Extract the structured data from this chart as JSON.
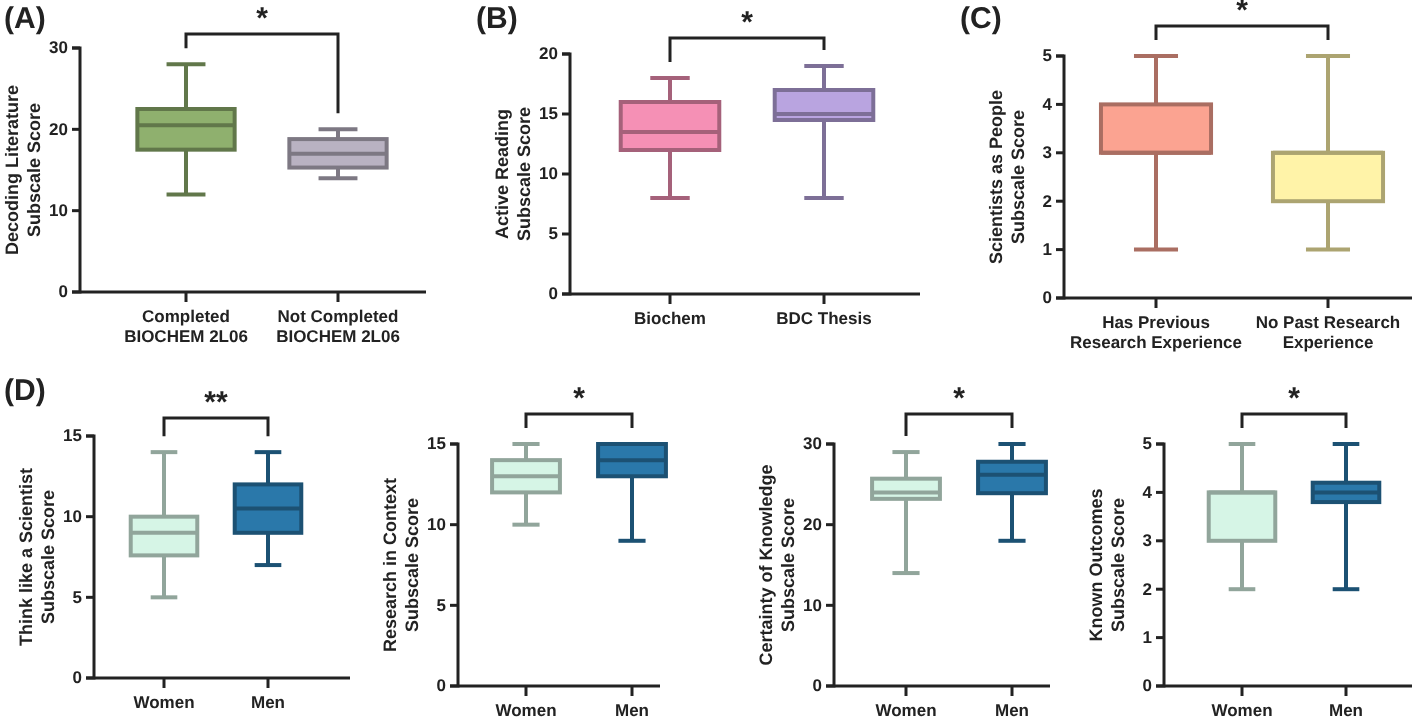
{
  "chart_data": [
    {
      "type": "box",
      "ylabel": "Decoding Literature\nSubscale Score",
      "categories": [
        "Completed\nBIOCHEM 2L06",
        "Not Completed\nBIOCHEM 2L06"
      ],
      "colors": [
        "#8fb06e",
        "#b9b2c2"
      ],
      "ylim": [
        0,
        30
      ],
      "yticks": [
        0,
        10,
        20,
        30
      ],
      "annotations": [
        "(A)",
        "*"
      ],
      "boxes": [
        {
          "low": 12,
          "q1": 17.5,
          "median": 20.5,
          "q3": 22.5,
          "high": 28
        },
        {
          "low": 14,
          "q1": 15.3,
          "median": 17,
          "q3": 18.8,
          "high": 20
        }
      ]
    },
    {
      "type": "box",
      "ylabel": "Active Reading\nSubscale Score",
      "categories": [
        "Biochem",
        "BDC Thesis"
      ],
      "colors": [
        "#f590b5",
        "#b9a4e0"
      ],
      "ylim": [
        0,
        20
      ],
      "yticks": [
        0,
        5,
        10,
        15,
        20
      ],
      "annotations": [
        "(B)",
        "*"
      ],
      "boxes": [
        {
          "low": 8,
          "q1": 12,
          "median": 13.5,
          "q3": 16,
          "high": 18
        },
        {
          "low": 8,
          "q1": 14.5,
          "median": 15,
          "q3": 17,
          "high": 19
        }
      ]
    },
    {
      "type": "box",
      "ylabel": "Scientists as People\nSubscale Score",
      "categories": [
        "Has Previous\nResearch Experience",
        "No Past Research\nExperience"
      ],
      "colors": [
        "#fba391",
        "#fff3a8"
      ],
      "ylim": [
        0,
        5
      ],
      "yticks": [
        0,
        1,
        2,
        3,
        4,
        5
      ],
      "annotations": [
        "(C)",
        "*"
      ],
      "boxes": [
        {
          "low": 1,
          "q1": 3,
          "median": 3,
          "q3": 4,
          "high": 5
        },
        {
          "low": 1,
          "q1": 2,
          "median": 3,
          "q3": 3,
          "high": 5
        }
      ]
    },
    {
      "type": "box",
      "ylabel": "Think like a Scientist\nSubscale Score",
      "categories": [
        "Women",
        "Men"
      ],
      "colors": [
        "#d6f5e6",
        "#2a78aa"
      ],
      "ylim": [
        0,
        15
      ],
      "yticks": [
        0,
        5,
        10,
        15
      ],
      "annotations": [
        "(D)",
        "**"
      ],
      "boxes": [
        {
          "low": 5,
          "q1": 7.6,
          "median": 9,
          "q3": 10,
          "high": 14
        },
        {
          "low": 7,
          "q1": 9,
          "median": 10.5,
          "q3": 12,
          "high": 14
        }
      ]
    },
    {
      "type": "box",
      "ylabel": "Research in Context\nSubscale Score",
      "categories": [
        "Women",
        "Men"
      ],
      "colors": [
        "#d6f5e6",
        "#2a78aa"
      ],
      "ylim": [
        0,
        15
      ],
      "yticks": [
        0,
        5,
        10,
        15
      ],
      "annotations": [
        "*"
      ],
      "boxes": [
        {
          "low": 10,
          "q1": 12,
          "median": 13,
          "q3": 14,
          "high": 15
        },
        {
          "low": 9,
          "q1": 13,
          "median": 14,
          "q3": 15,
          "high": 15
        }
      ]
    },
    {
      "type": "box",
      "ylabel": "Certainty of Knowledge\nSubscale Score",
      "categories": [
        "Women",
        "Men"
      ],
      "colors": [
        "#d6f5e6",
        "#2a78aa"
      ],
      "ylim": [
        0,
        30
      ],
      "yticks": [
        0,
        10,
        20,
        30
      ],
      "annotations": [
        "*"
      ],
      "boxes": [
        {
          "low": 14,
          "q1": 23.2,
          "median": 24,
          "q3": 25.7,
          "high": 29
        },
        {
          "low": 18,
          "q1": 23.9,
          "median": 26.2,
          "q3": 27.8,
          "high": 30
        }
      ]
    },
    {
      "type": "box",
      "ylabel": "Known Outcomes\nSubscale Score",
      "categories": [
        "Women",
        "Men"
      ],
      "colors": [
        "#d6f5e6",
        "#2a78aa"
      ],
      "ylim": [
        0,
        5
      ],
      "yticks": [
        0,
        1,
        2,
        3,
        4,
        5
      ],
      "annotations": [
        "*"
      ],
      "boxes": [
        {
          "low": 2,
          "q1": 3,
          "median": 4,
          "q3": 4,
          "high": 5
        },
        {
          "low": 2,
          "q1": 3.8,
          "median": 4,
          "q3": 4.2,
          "high": 5
        }
      ]
    }
  ]
}
